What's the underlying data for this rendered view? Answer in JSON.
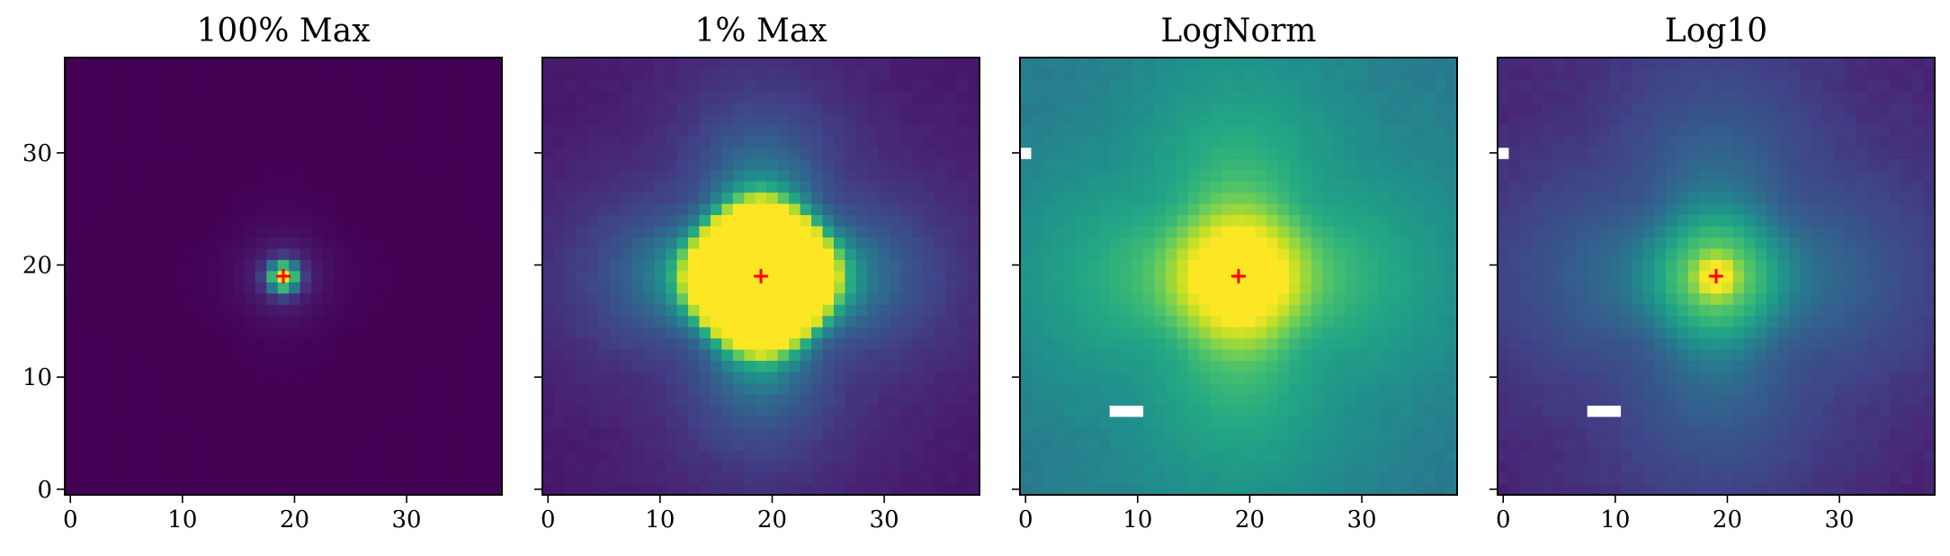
{
  "chart_data": [
    {
      "type": "heatmap",
      "title": "100% Max",
      "norm": "linear, vmax = 100% of peak",
      "colormap": "viridis",
      "grid_size": [
        39,
        39
      ],
      "xlim": [
        -0.5,
        38.5
      ],
      "ylim": [
        -0.5,
        38.5
      ],
      "xticks": [
        0,
        10,
        20,
        30
      ],
      "yticks": [
        0,
        10,
        20,
        30
      ],
      "show_yticklabels": true,
      "center_marker": {
        "x": 19,
        "y": 19,
        "symbol": "+",
        "color": "#ff0000"
      },
      "masked_cells": []
    },
    {
      "type": "heatmap",
      "title": "1% Max",
      "norm": "linear, vmax = 1% of peak (saturated core)",
      "colormap": "viridis",
      "grid_size": [
        39,
        39
      ],
      "xlim": [
        -0.5,
        38.5
      ],
      "ylim": [
        -0.5,
        38.5
      ],
      "xticks": [
        0,
        10,
        20,
        30
      ],
      "yticks": [
        0,
        10,
        20,
        30
      ],
      "show_yticklabels": false,
      "center_marker": {
        "x": 19,
        "y": 19,
        "symbol": "+",
        "color": "#ff0000"
      },
      "masked_cells": []
    },
    {
      "type": "heatmap",
      "title": "LogNorm",
      "norm": "logarithmic",
      "colormap": "viridis",
      "grid_size": [
        39,
        39
      ],
      "xlim": [
        -0.5,
        38.5
      ],
      "ylim": [
        -0.5,
        38.5
      ],
      "xticks": [
        0,
        10,
        20,
        30
      ],
      "yticks": [
        0,
        10,
        20,
        30
      ],
      "show_yticklabels": false,
      "center_marker": {
        "x": 19,
        "y": 19,
        "symbol": "+",
        "color": "#ff0000"
      },
      "masked_cells": [
        [
          0,
          30
        ],
        [
          8,
          7
        ],
        [
          9,
          7
        ],
        [
          10,
          7
        ]
      ]
    },
    {
      "type": "heatmap",
      "title": "Log10",
      "norm": "log10 of data",
      "colormap": "viridis",
      "grid_size": [
        39,
        39
      ],
      "xlim": [
        -0.5,
        38.5
      ],
      "ylim": [
        -0.5,
        38.5
      ],
      "xticks": [
        0,
        10,
        20,
        30
      ],
      "yticks": [
        0,
        10,
        20,
        30
      ],
      "show_yticklabels": false,
      "center_marker": {
        "x": 19,
        "y": 19,
        "symbol": "+",
        "color": "#ff0000"
      },
      "masked_cells": [
        [
          0,
          30
        ],
        [
          8,
          7
        ],
        [
          9,
          7
        ],
        [
          10,
          7
        ]
      ]
    }
  ]
}
